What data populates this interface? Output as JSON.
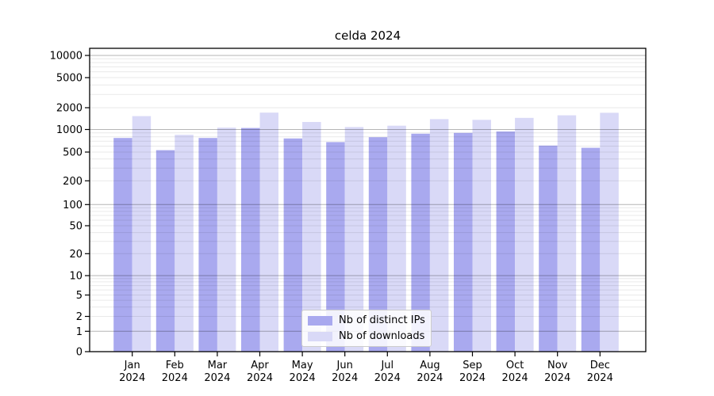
{
  "title": "celda 2024",
  "chart_data": {
    "type": "bar",
    "title": "celda 2024",
    "categories": [
      "Jan",
      "Feb",
      "Mar",
      "Apr",
      "May",
      "Jun",
      "Jul",
      "Aug",
      "Sep",
      "Oct",
      "Nov",
      "Dec"
    ],
    "category_year": "2024",
    "series": [
      {
        "name": "Nb of distinct IPs",
        "color": "#a9a9ef",
        "values": [
          770,
          530,
          770,
          1050,
          760,
          680,
          790,
          880,
          900,
          940,
          610,
          570
        ]
      },
      {
        "name": "Nb of downloads",
        "color": "#d9d9f7",
        "values": [
          1530,
          850,
          1060,
          1710,
          1270,
          1080,
          1130,
          1390,
          1360,
          1450,
          1570,
          1700
        ]
      }
    ],
    "xlabel": "",
    "ylabel": "",
    "yscale": "symlog",
    "y_ticks": [
      0,
      1,
      2,
      5,
      10,
      20,
      50,
      100,
      200,
      500,
      1000,
      2000,
      5000,
      10000
    ],
    "y_major_gridlines": [
      1,
      10,
      100,
      1000,
      10000
    ],
    "ylim": [
      0,
      12000
    ],
    "grid": true,
    "legend_position": "lower center",
    "bar_edge_color": "none",
    "background_color": "#ffffff",
    "major_grid_color": "#b5b5b5",
    "minor_grid_color": "#e9e9e9",
    "axis_color": "#000000"
  }
}
